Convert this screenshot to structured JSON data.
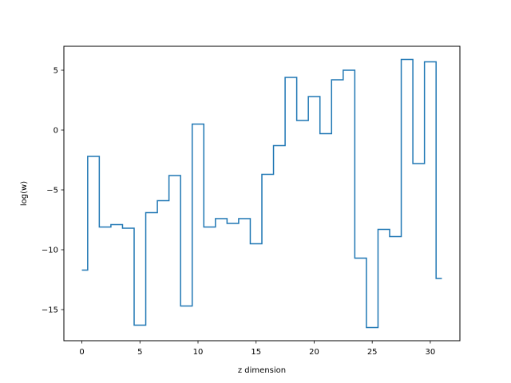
{
  "chart_data": {
    "type": "line",
    "drawstyle": "steps-mid",
    "title": "",
    "xlabel": "z dimension",
    "ylabel": "log(w)",
    "xlim": [
      -1.55,
      32.55
    ],
    "ylim": [
      -17.6,
      7.0
    ],
    "xticks": [
      0,
      5,
      10,
      15,
      20,
      25,
      30
    ],
    "yticks": [
      -15,
      -10,
      -5,
      0,
      5
    ],
    "ytick_labels": [
      "−15",
      "−10",
      "−5",
      "0",
      "5"
    ],
    "grid": false,
    "legend": "none",
    "line_color": "#1f77b4",
    "x": [
      0,
      1,
      2,
      3,
      4,
      5,
      6,
      7,
      8,
      9,
      10,
      11,
      12,
      13,
      14,
      15,
      16,
      17,
      18,
      19,
      20,
      21,
      22,
      23,
      24,
      25,
      26,
      27,
      28,
      29,
      30,
      31
    ],
    "y": [
      -11.7,
      -2.2,
      -8.1,
      -7.9,
      -8.2,
      -16.3,
      -6.9,
      -5.9,
      -3.8,
      -14.7,
      0.5,
      -8.1,
      -7.4,
      -7.8,
      -7.4,
      -9.5,
      -3.7,
      -1.3,
      4.4,
      0.8,
      2.8,
      -0.3,
      4.2,
      5.0,
      -10.7,
      -16.5,
      -8.3,
      -8.9,
      5.9,
      -2.8,
      5.7,
      -12.4
    ]
  }
}
